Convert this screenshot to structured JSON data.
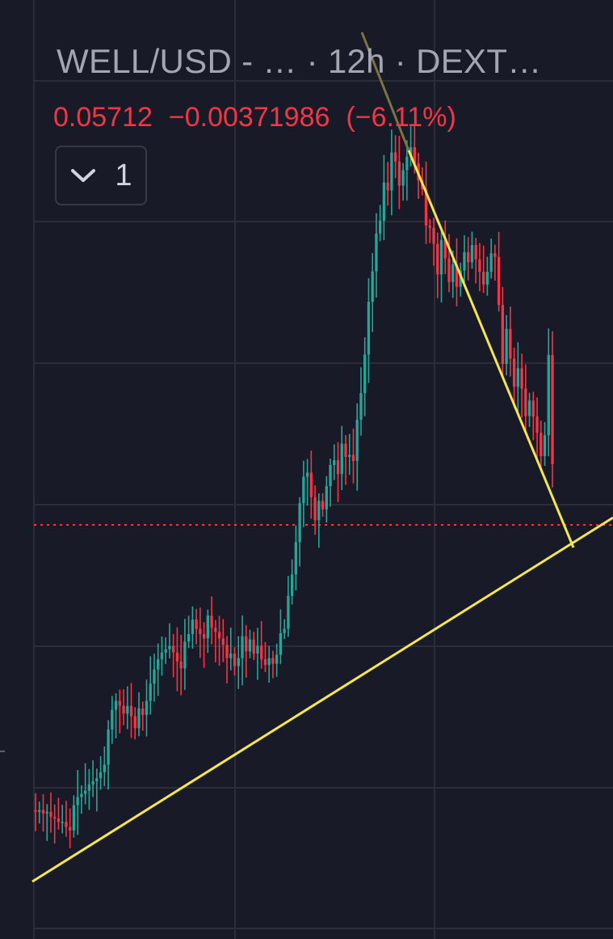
{
  "header": {
    "title": "WELL/USD - …  · 12h · DEXT…",
    "price": "0.05712",
    "change": "−0.00371986",
    "change_pct": "(−6.11%)"
  },
  "collapse_button": {
    "icon": "chevron-down-icon",
    "count": "1"
  },
  "colors": {
    "background": "#181b27",
    "grid": "#2a2e39",
    "up": "#26a69a",
    "down": "#f23645",
    "trendline": "#f5e64e",
    "text": "#a3a6b0"
  },
  "chart_data": {
    "type": "candlestick",
    "title": "WELL/USD",
    "interval": "12h",
    "last_price": 0.05712,
    "price_line": "dotted, last price",
    "grid": true,
    "close": [
      0.0235,
      0.0236,
      0.0234,
      0.0235,
      0.0232,
      0.0231,
      0.0229,
      0.0229,
      0.0226,
      0.0224,
      0.0239,
      0.0244,
      0.0246,
      0.0248,
      0.0252,
      0.0254,
      0.0256,
      0.026,
      0.0265,
      0.029,
      0.0305,
      0.0312,
      0.0308,
      0.0302,
      0.0308,
      0.03,
      0.0291,
      0.0306,
      0.0301,
      0.0312,
      0.0326,
      0.0338,
      0.0347,
      0.0353,
      0.0356,
      0.0359,
      0.0353,
      0.0345,
      0.0339,
      0.0363,
      0.037,
      0.0384,
      0.0375,
      0.037,
      0.0366,
      0.0388,
      0.0376,
      0.0372,
      0.0366,
      0.036,
      0.0348,
      0.0352,
      0.0341,
      0.0348,
      0.0368,
      0.0354,
      0.0365,
      0.0352,
      0.0359,
      0.0347,
      0.0342,
      0.0348,
      0.0343,
      0.0351,
      0.0371,
      0.0375,
      0.0408,
      0.0431,
      0.0468,
      0.0517,
      0.0553,
      0.0559,
      0.0525,
      0.0495,
      0.052,
      0.0509,
      0.054,
      0.057,
      0.0577,
      0.0557,
      0.0602,
      0.0582,
      0.0585,
      0.0576,
      0.064,
      0.0685,
      0.0756,
      0.0865,
      0.0935,
      0.103,
      0.1064,
      0.1173,
      0.115,
      0.1267,
      0.1238,
      0.1164,
      0.1211,
      0.1253,
      0.1284,
      0.1232,
      0.118,
      0.1154,
      0.1051,
      0.1045,
      0.1003,
      0.0928,
      0.1013,
      0.0966,
      0.091,
      0.0952,
      0.0899,
      0.0937,
      0.0982,
      0.0957,
      0.1,
      0.0964,
      0.0934,
      0.0904,
      0.0934,
      0.0979,
      0.097,
      0.0858,
      0.0738,
      0.0807,
      0.0748,
      0.0696,
      0.073,
      0.0693,
      0.0646,
      0.0672,
      0.0645,
      0.0619,
      0.0583,
      0.0615,
      0.0755,
      0.0571
    ]
  }
}
